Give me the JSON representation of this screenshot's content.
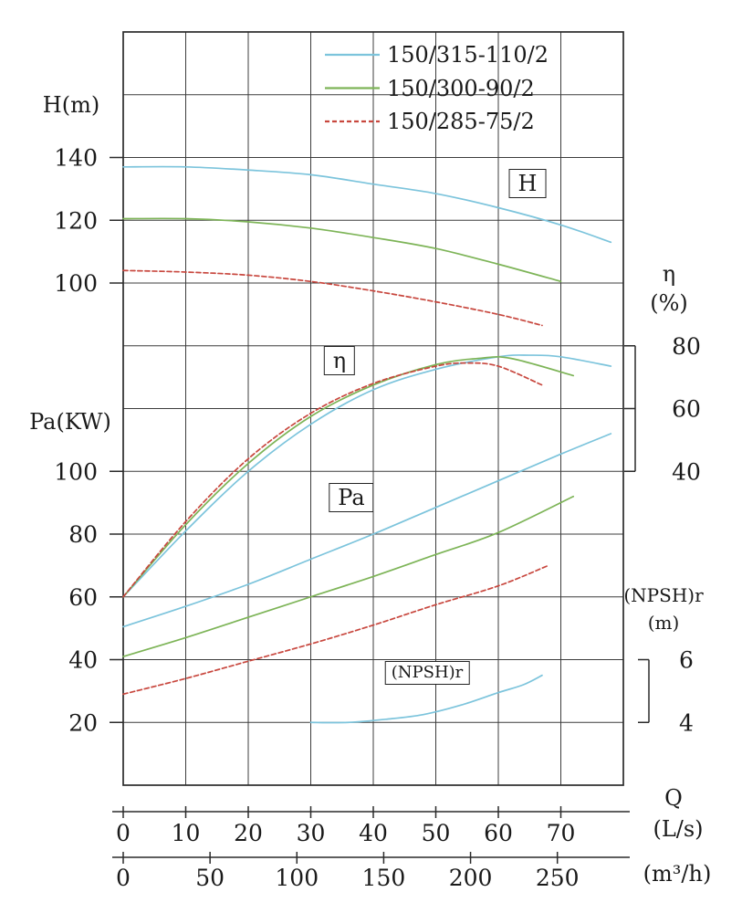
{
  "colors": {
    "blue": "#7cc4dc",
    "green": "#7db457",
    "red": "#c8473e",
    "grid": "#3c3c3c",
    "text": "#1a1a1a"
  },
  "legend": {
    "items": [
      {
        "label": "150/315-110/2",
        "color": "#7cc4dc",
        "dash": ""
      },
      {
        "label": "150/300-90/2",
        "color": "#7db457",
        "dash": ""
      },
      {
        "label": "150/285-75/2",
        "color": "#c8473e",
        "dash": "5 3"
      }
    ]
  },
  "labels": {
    "h_axis": "H(m)",
    "pa_axis": "Pa(KW)",
    "eta_symbol": "η",
    "eta_unit": "(%)",
    "npshr": "(NPSH)r",
    "npshr_unit": "(m)",
    "q": "Q",
    "q_unit_ls": "(L/s)",
    "q_unit_m3h": "(m³/h)",
    "box_h": "H",
    "box_eta": "η",
    "box_pa": "Pa",
    "box_npshr": "(NPSH)r"
  },
  "chart_data": {
    "type": "line",
    "title": "",
    "x_axis": {
      "label": "Q",
      "primary_unit": "L/s",
      "secondary_unit": "m³/h",
      "ls_ticks": [
        0,
        10,
        20,
        30,
        40,
        50,
        60,
        70
      ],
      "m3h_ticks": [
        0,
        50,
        100,
        150,
        200,
        250
      ],
      "range_ls": [
        0,
        80
      ]
    },
    "y_axes": {
      "H": {
        "label": "H(m)",
        "ticks": [
          140,
          120,
          100
        ]
      },
      "Pa": {
        "label": "Pa(KW)",
        "ticks": [
          100,
          80,
          60,
          40,
          20
        ]
      },
      "eta": {
        "label": "η(%)",
        "ticks": [
          80,
          60,
          40
        ]
      },
      "npshr": {
        "label": "(NPSH)r(m)",
        "ticks": [
          6,
          4
        ]
      }
    },
    "grid": true,
    "legend_position": "top",
    "series": [
      {
        "name": "150/315-110/2",
        "axis": "H",
        "color": "#7cc4dc",
        "dash": "",
        "points": [
          [
            0,
            137
          ],
          [
            10,
            137
          ],
          [
            20,
            136
          ],
          [
            30,
            134.5
          ],
          [
            40,
            131.5
          ],
          [
            50,
            128.5
          ],
          [
            60,
            124
          ],
          [
            70,
            118.5
          ],
          [
            78,
            113
          ]
        ]
      },
      {
        "name": "150/300-90/2",
        "axis": "H",
        "color": "#7db457",
        "dash": "",
        "points": [
          [
            0,
            120.5
          ],
          [
            10,
            120.5
          ],
          [
            20,
            119.5
          ],
          [
            30,
            117.5
          ],
          [
            40,
            114.5
          ],
          [
            50,
            111
          ],
          [
            60,
            106
          ],
          [
            70,
            100.5
          ]
        ]
      },
      {
        "name": "150/285-75/2",
        "axis": "H",
        "color": "#c8473e",
        "dash": "5 3",
        "points": [
          [
            0,
            104
          ],
          [
            10,
            103.5
          ],
          [
            20,
            102.5
          ],
          [
            30,
            100.5
          ],
          [
            40,
            97.5
          ],
          [
            50,
            94
          ],
          [
            60,
            90
          ],
          [
            67,
            86.5
          ]
        ]
      },
      {
        "name": "150/315-110/2",
        "axis": "eta",
        "color": "#7cc4dc",
        "dash": "",
        "points": [
          [
            0,
            0
          ],
          [
            10,
            21
          ],
          [
            20,
            40
          ],
          [
            30,
            55
          ],
          [
            40,
            66
          ],
          [
            50,
            72.5
          ],
          [
            60,
            76.5
          ],
          [
            65,
            77
          ],
          [
            70,
            76.5
          ],
          [
            78,
            73.5
          ]
        ]
      },
      {
        "name": "150/300-90/2",
        "axis": "eta",
        "color": "#7db457",
        "dash": "",
        "points": [
          [
            0,
            0
          ],
          [
            10,
            23
          ],
          [
            20,
            42.5
          ],
          [
            30,
            57.5
          ],
          [
            40,
            67.5
          ],
          [
            50,
            74
          ],
          [
            57,
            76
          ],
          [
            62,
            76
          ],
          [
            72,
            70.5
          ]
        ]
      },
      {
        "name": "150/285-75/2",
        "axis": "eta",
        "color": "#c8473e",
        "dash": "5 3",
        "points": [
          [
            0,
            0
          ],
          [
            10,
            24
          ],
          [
            20,
            44
          ],
          [
            30,
            58.5
          ],
          [
            40,
            68
          ],
          [
            50,
            73.5
          ],
          [
            55,
            74.5
          ],
          [
            60,
            73.5
          ],
          [
            67,
            67.5
          ]
        ]
      },
      {
        "name": "150/315-110/2",
        "axis": "Pa",
        "color": "#7cc4dc",
        "dash": "",
        "points": [
          [
            0,
            50.5
          ],
          [
            10,
            57
          ],
          [
            20,
            64
          ],
          [
            30,
            72
          ],
          [
            40,
            80
          ],
          [
            50,
            88.5
          ],
          [
            60,
            97
          ],
          [
            70,
            105.5
          ],
          [
            78,
            112
          ]
        ]
      },
      {
        "name": "150/300-90/2",
        "axis": "Pa",
        "color": "#7db457",
        "dash": "",
        "points": [
          [
            0,
            41
          ],
          [
            10,
            47
          ],
          [
            20,
            53.5
          ],
          [
            30,
            60
          ],
          [
            40,
            66.5
          ],
          [
            50,
            73.5
          ],
          [
            60,
            80.5
          ],
          [
            72,
            92
          ]
        ]
      },
      {
        "name": "150/285-75/2",
        "axis": "Pa",
        "color": "#c8473e",
        "dash": "5 3",
        "points": [
          [
            0,
            29
          ],
          [
            10,
            34
          ],
          [
            20,
            39.5
          ],
          [
            30,
            45
          ],
          [
            40,
            51
          ],
          [
            50,
            57.5
          ],
          [
            60,
            63.5
          ],
          [
            68,
            70
          ]
        ]
      },
      {
        "name": "150/315-110/2",
        "axis": "npshr",
        "color": "#7cc4dc",
        "dash": "",
        "points": [
          [
            30,
            4
          ],
          [
            36,
            4
          ],
          [
            42,
            4.1
          ],
          [
            48,
            4.25
          ],
          [
            54,
            4.55
          ],
          [
            60,
            4.95
          ],
          [
            64,
            5.2
          ],
          [
            67,
            5.5
          ]
        ]
      }
    ]
  }
}
